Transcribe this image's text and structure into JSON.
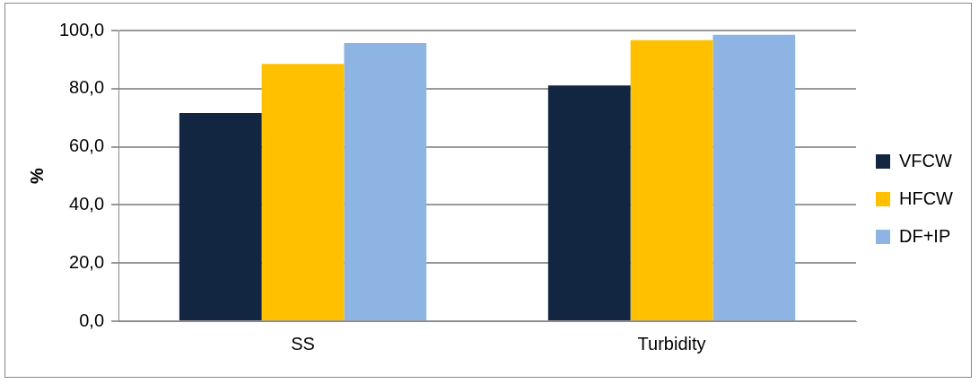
{
  "chart_data": {
    "type": "bar",
    "ylabel": "%",
    "categories": [
      "SS",
      "Turbidity"
    ],
    "series": [
      {
        "name": "VFCW",
        "color": "#122641",
        "values": [
          71.6,
          81.1
        ]
      },
      {
        "name": "HFCW",
        "color": "#ffc000",
        "values": [
          88.5,
          96.7
        ]
      },
      {
        "name": "DF+IP",
        "color": "#8db4e2",
        "values": [
          95.7,
          98.5
        ]
      }
    ],
    "ylim": [
      0,
      100
    ],
    "yticks": [
      {
        "value": 0,
        "label": "0,0"
      },
      {
        "value": 20,
        "label": "20,0"
      },
      {
        "value": 40,
        "label": "40,0"
      },
      {
        "value": 60,
        "label": "60,0"
      },
      {
        "value": 80,
        "label": "80,0"
      },
      {
        "value": 100,
        "label": "100,0"
      }
    ],
    "grid": "y",
    "legend": "right"
  }
}
